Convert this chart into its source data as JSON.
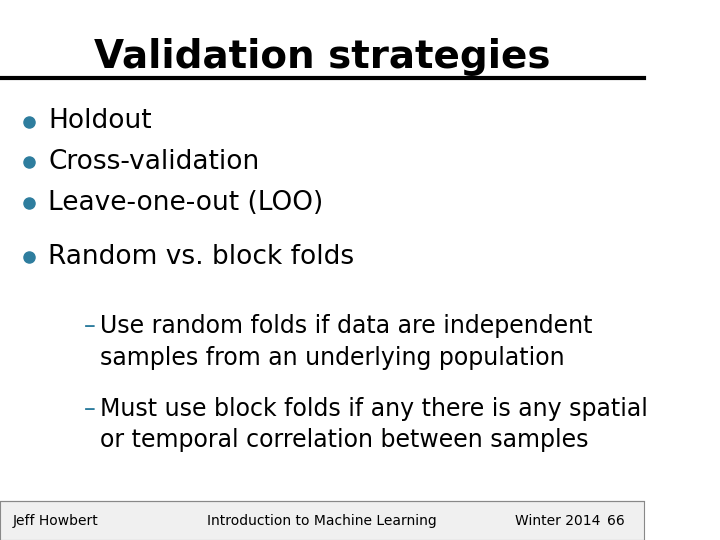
{
  "title": "Validation strategies",
  "title_fontsize": 28,
  "title_fontweight": "bold",
  "background_color": "#ffffff",
  "bullet_color": "#2e7d9e",
  "text_color": "#000000",
  "footer_color": "#000000",
  "line_color": "#000000",
  "bullet_items": [
    "Holdout",
    "Cross-validation",
    "Leave-one-out (LOO)"
  ],
  "bullet2_items": [
    "Random vs. block folds"
  ],
  "sub_items": [
    "Use random folds if data are independent\nsamples from an underlying population",
    "Must use block folds if any there is any spatial\nor temporal correlation between samples"
  ],
  "footer_left": "Jeff Howbert",
  "footer_center": "Introduction to Machine Learning",
  "footer_right": "Winter 2014",
  "footer_page": "66",
  "bullet_fontsize": 19,
  "sub_fontsize": 17,
  "footer_fontsize": 10
}
